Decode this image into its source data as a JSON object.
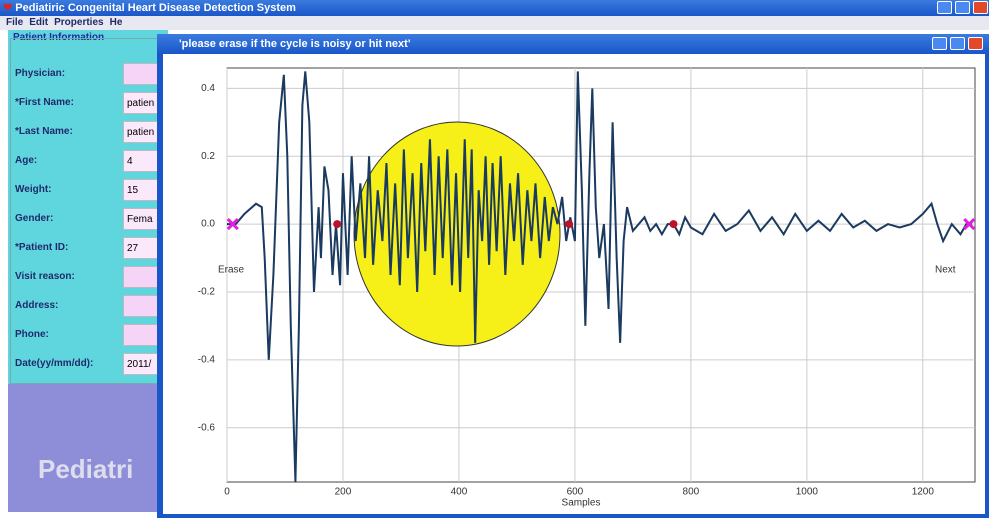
{
  "window": {
    "title": "Pediatiric Congenital Heart Disease Detection System",
    "menu": [
      "File",
      "Edit",
      "Properties",
      "He"
    ]
  },
  "patient_info": {
    "title": "Patient Information",
    "fields": [
      {
        "label": "Physician:"
      },
      {
        "label": "*First Name:",
        "value": "patien"
      },
      {
        "label": "*Last Name:",
        "value": "patien"
      },
      {
        "label": "Age:",
        "value": "4"
      },
      {
        "label": "Weight:",
        "value": "15"
      },
      {
        "label": "Gender:",
        "value": "Fema"
      },
      {
        "label": "*Patient ID:",
        "value": "27"
      },
      {
        "label": "Visit reason:"
      },
      {
        "label": "Address:"
      },
      {
        "label": "Phone:"
      },
      {
        "label": "Date(yy/mm/dd):",
        "value": "2011/"
      }
    ],
    "banner": "Pediatri"
  },
  "dialog": {
    "title": "'please erase if the cycle is noisy or hit next'"
  },
  "chart_data": {
    "type": "line",
    "x_label": "Samples",
    "annotations": [
      "Erase",
      "Next"
    ],
    "xlim": [
      0,
      1290
    ],
    "ylim": [
      -0.76,
      0.46
    ],
    "xticks": [
      0,
      200,
      400,
      600,
      800,
      1000,
      1200
    ],
    "yticks": [
      -0.6,
      -0.4,
      -0.2,
      {
        "value": 0,
        "label": "0.0"
      },
      0.2,
      0.4
    ],
    "grid": true,
    "series": [
      {
        "color": "#1a3a60",
        "marker": "line",
        "x": [
          0,
          15,
          30,
          50,
          60,
          65,
          72,
          80,
          90,
          98,
          104,
          110,
          118,
          124,
          130,
          135,
          142,
          150,
          158,
          162,
          168,
          175,
          182,
          188,
          195,
          200,
          208,
          215,
          222,
          230,
          238,
          245,
          252,
          260,
          268,
          275,
          282,
          290,
          298,
          305,
          312,
          320,
          328,
          335,
          342,
          350,
          358,
          365,
          372,
          380,
          388,
          395,
          402,
          410,
          416,
          422,
          428,
          434,
          440,
          446,
          452,
          458,
          465,
          472,
          480,
          488,
          495,
          502,
          510,
          518,
          525,
          532,
          540,
          548,
          555,
          562,
          570,
          578,
          585,
          592,
          600,
          605,
          612,
          618,
          625,
          630,
          636,
          642,
          650,
          658,
          665,
          672,
          678,
          684,
          690,
          700,
          710,
          720,
          730,
          740,
          750,
          760,
          770,
          780,
          790,
          800,
          820,
          840,
          860,
          880,
          900,
          920,
          940,
          960,
          980,
          1000,
          1020,
          1040,
          1060,
          1080,
          1100,
          1120,
          1140,
          1160,
          1180,
          1200,
          1215,
          1225,
          1235,
          1250,
          1265,
          1275,
          1285
        ],
        "values": [
          0,
          0,
          0.03,
          0.06,
          0.05,
          -0.1,
          -0.4,
          -0.15,
          0.3,
          0.44,
          0.2,
          -0.3,
          -0.76,
          -0.3,
          0.35,
          0.45,
          0.3,
          -0.2,
          0.05,
          -0.1,
          0.17,
          0.1,
          -0.15,
          0,
          -0.18,
          0.15,
          -0.15,
          0.2,
          -0.05,
          0.12,
          -0.1,
          0.2,
          -0.12,
          0.1,
          -0.05,
          0.18,
          -0.15,
          0.12,
          -0.18,
          0.22,
          -0.1,
          0.15,
          -0.2,
          0.18,
          -0.08,
          0.25,
          -0.15,
          0.2,
          -0.1,
          0.22,
          -0.18,
          0.15,
          -0.2,
          0.25,
          -0.1,
          0.22,
          -0.35,
          0.1,
          -0.05,
          0.2,
          -0.12,
          0.18,
          -0.08,
          0.2,
          -0.15,
          0.12,
          -0.05,
          0.15,
          -0.12,
          0.1,
          -0.05,
          0.12,
          -0.1,
          0.08,
          -0.05,
          0.05,
          0,
          0.08,
          -0.05,
          0.02,
          -0.05,
          0.45,
          0.1,
          -0.3,
          0.15,
          0.4,
          0.05,
          -0.1,
          0,
          -0.25,
          0.3,
          -0.1,
          -0.35,
          -0.05,
          0.05,
          -0.02,
          0,
          0.02,
          -0.02,
          0,
          -0.03,
          0,
          0,
          -0.03,
          0.02,
          -0.01,
          -0.03,
          0.03,
          -0.02,
          0,
          0.04,
          -0.02,
          0.02,
          -0.03,
          0.03,
          -0.02,
          0.01,
          -0.02,
          0.03,
          -0.01,
          0.01,
          -0.02,
          0,
          -0.01,
          0,
          0.03,
          0.06,
          0,
          -0.05,
          0,
          -0.03,
          0,
          0
        ]
      },
      {
        "color": "#c0102a",
        "marker": "dot",
        "x": [
          190,
          590,
          770
        ],
        "values": [
          0,
          0,
          0
        ]
      },
      {
        "color": "#e020e0",
        "marker": "cross",
        "x": [
          10,
          1280
        ],
        "values": [
          0,
          0
        ]
      }
    ]
  }
}
